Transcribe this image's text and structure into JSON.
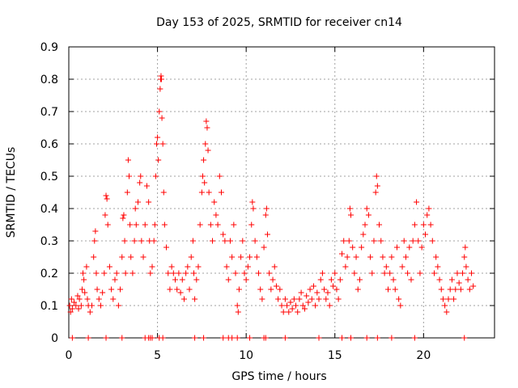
{
  "chart_data": {
    "type": "scatter",
    "title": "Day 153 of 2025, SRMTID for receiver cn14",
    "xlabel": "GPS time / hours",
    "ylabel": "SRMTID / TECUs",
    "xlim": [
      0,
      24
    ],
    "ylim": [
      0,
      0.9
    ],
    "x_ticks": [
      0,
      5,
      10,
      15,
      20
    ],
    "y_ticks": [
      0,
      0.1,
      0.2,
      0.3,
      0.4,
      0.5,
      0.6,
      0.7,
      0.8,
      0.9
    ],
    "grid": true,
    "marker": "plus",
    "color": "#ff0000",
    "series": [
      {
        "name": "SRMTID",
        "points": [
          [
            0.05,
            0.1
          ],
          [
            0.1,
            0.08
          ],
          [
            0.15,
            0.12
          ],
          [
            0.2,
            0.09
          ],
          [
            0.3,
            0.11
          ],
          [
            0.4,
            0.1
          ],
          [
            0.5,
            0.13
          ],
          [
            0.55,
            0.09
          ],
          [
            0.6,
            0.12
          ],
          [
            0.7,
            0.1
          ],
          [
            0.75,
            0.15
          ],
          [
            0.8,
            0.2
          ],
          [
            0.85,
            0.18
          ],
          [
            0.9,
            0.14
          ],
          [
            1.0,
            0.22
          ],
          [
            1.05,
            0.12
          ],
          [
            1.1,
            0.1
          ],
          [
            1.2,
            0.08
          ],
          [
            1.3,
            0.1
          ],
          [
            1.4,
            0.25
          ],
          [
            1.45,
            0.3
          ],
          [
            1.5,
            0.33
          ],
          [
            1.55,
            0.2
          ],
          [
            1.6,
            0.15
          ],
          [
            1.7,
            0.12
          ],
          [
            1.8,
            0.1
          ],
          [
            1.9,
            0.14
          ],
          [
            2.0,
            0.2
          ],
          [
            2.05,
            0.38
          ],
          [
            2.1,
            0.44
          ],
          [
            2.15,
            0.43
          ],
          [
            2.2,
            0.35
          ],
          [
            2.3,
            0.22
          ],
          [
            2.4,
            0.15
          ],
          [
            2.5,
            0.12
          ],
          [
            2.6,
            0.18
          ],
          [
            2.7,
            0.2
          ],
          [
            2.8,
            0.1
          ],
          [
            2.9,
            0.15
          ],
          [
            3.0,
            0.25
          ],
          [
            3.05,
            0.37
          ],
          [
            3.1,
            0.38
          ],
          [
            3.15,
            0.3
          ],
          [
            3.2,
            0.2
          ],
          [
            3.3,
            0.45
          ],
          [
            3.35,
            0.55
          ],
          [
            3.4,
            0.5
          ],
          [
            3.45,
            0.35
          ],
          [
            3.5,
            0.25
          ],
          [
            3.6,
            0.2
          ],
          [
            3.7,
            0.3
          ],
          [
            3.75,
            0.4
          ],
          [
            3.8,
            0.35
          ],
          [
            3.9,
            0.42
          ],
          [
            4.0,
            0.48
          ],
          [
            4.05,
            0.5
          ],
          [
            4.1,
            0.3
          ],
          [
            4.2,
            0.25
          ],
          [
            4.3,
            0.35
          ],
          [
            4.4,
            0.47
          ],
          [
            4.5,
            0.42
          ],
          [
            4.55,
            0.3
          ],
          [
            4.6,
            0.2
          ],
          [
            4.7,
            0.22
          ],
          [
            4.8,
            0.3
          ],
          [
            4.85,
            0.35
          ],
          [
            4.9,
            0.5
          ],
          [
            4.95,
            0.6
          ],
          [
            5.0,
            0.62
          ],
          [
            5.05,
            0.55
          ],
          [
            5.1,
            0.7
          ],
          [
            5.15,
            0.77
          ],
          [
            5.18,
            0.8
          ],
          [
            5.2,
            0.81
          ],
          [
            5.22,
            0.8
          ],
          [
            5.25,
            0.68
          ],
          [
            5.3,
            0.6
          ],
          [
            5.35,
            0.45
          ],
          [
            5.4,
            0.35
          ],
          [
            5.5,
            0.28
          ],
          [
            5.6,
            0.2
          ],
          [
            5.7,
            0.15
          ],
          [
            5.8,
            0.22
          ],
          [
            5.9,
            0.2
          ],
          [
            6.0,
            0.18
          ],
          [
            6.1,
            0.15
          ],
          [
            6.2,
            0.2
          ],
          [
            6.3,
            0.14
          ],
          [
            6.4,
            0.18
          ],
          [
            6.5,
            0.12
          ],
          [
            6.6,
            0.2
          ],
          [
            6.7,
            0.22
          ],
          [
            6.8,
            0.15
          ],
          [
            6.9,
            0.25
          ],
          [
            7.0,
            0.3
          ],
          [
            7.05,
            0.2
          ],
          [
            7.1,
            0.12
          ],
          [
            7.2,
            0.18
          ],
          [
            7.3,
            0.22
          ],
          [
            7.4,
            0.35
          ],
          [
            7.5,
            0.45
          ],
          [
            7.55,
            0.5
          ],
          [
            7.6,
            0.55
          ],
          [
            7.65,
            0.48
          ],
          [
            7.7,
            0.6
          ],
          [
            7.75,
            0.67
          ],
          [
            7.8,
            0.65
          ],
          [
            7.85,
            0.58
          ],
          [
            7.9,
            0.45
          ],
          [
            8.0,
            0.35
          ],
          [
            8.1,
            0.3
          ],
          [
            8.2,
            0.42
          ],
          [
            8.3,
            0.38
          ],
          [
            8.4,
            0.35
          ],
          [
            8.5,
            0.5
          ],
          [
            8.6,
            0.45
          ],
          [
            8.7,
            0.32
          ],
          [
            8.8,
            0.3
          ],
          [
            8.9,
            0.22
          ],
          [
            9.0,
            0.18
          ],
          [
            9.1,
            0.3
          ],
          [
            9.2,
            0.25
          ],
          [
            9.3,
            0.35
          ],
          [
            9.4,
            0.2
          ],
          [
            9.5,
            0.1
          ],
          [
            9.55,
            0.08
          ],
          [
            9.6,
            0.15
          ],
          [
            9.7,
            0.25
          ],
          [
            9.8,
            0.3
          ],
          [
            9.9,
            0.2
          ],
          [
            10.0,
            0.18
          ],
          [
            10.1,
            0.22
          ],
          [
            10.2,
            0.25
          ],
          [
            10.3,
            0.35
          ],
          [
            10.35,
            0.42
          ],
          [
            10.4,
            0.4
          ],
          [
            10.5,
            0.3
          ],
          [
            10.6,
            0.25
          ],
          [
            10.7,
            0.2
          ],
          [
            10.8,
            0.15
          ],
          [
            10.9,
            0.12
          ],
          [
            11.0,
            0.28
          ],
          [
            11.1,
            0.38
          ],
          [
            11.15,
            0.4
          ],
          [
            11.2,
            0.32
          ],
          [
            11.3,
            0.2
          ],
          [
            11.4,
            0.15
          ],
          [
            11.5,
            0.18
          ],
          [
            11.6,
            0.22
          ],
          [
            11.7,
            0.16
          ],
          [
            11.8,
            0.12
          ],
          [
            11.9,
            0.15
          ],
          [
            12.0,
            0.1
          ],
          [
            12.1,
            0.08
          ],
          [
            12.2,
            0.12
          ],
          [
            12.3,
            0.1
          ],
          [
            12.4,
            0.08
          ],
          [
            12.5,
            0.11
          ],
          [
            12.6,
            0.09
          ],
          [
            12.7,
            0.12
          ],
          [
            12.8,
            0.1
          ],
          [
            12.9,
            0.08
          ],
          [
            13.0,
            0.12
          ],
          [
            13.1,
            0.14
          ],
          [
            13.2,
            0.1
          ],
          [
            13.3,
            0.09
          ],
          [
            13.4,
            0.13
          ],
          [
            13.5,
            0.11
          ],
          [
            13.6,
            0.15
          ],
          [
            13.7,
            0.12
          ],
          [
            13.8,
            0.16
          ],
          [
            13.9,
            0.1
          ],
          [
            14.0,
            0.14
          ],
          [
            14.1,
            0.12
          ],
          [
            14.2,
            0.18
          ],
          [
            14.3,
            0.2
          ],
          [
            14.4,
            0.15
          ],
          [
            14.5,
            0.12
          ],
          [
            14.6,
            0.14
          ],
          [
            14.7,
            0.1
          ],
          [
            14.8,
            0.18
          ],
          [
            14.9,
            0.16
          ],
          [
            15.0,
            0.2
          ],
          [
            15.1,
            0.15
          ],
          [
            15.2,
            0.12
          ],
          [
            15.3,
            0.18
          ],
          [
            15.4,
            0.26
          ],
          [
            15.5,
            0.3
          ],
          [
            15.6,
            0.22
          ],
          [
            15.7,
            0.25
          ],
          [
            15.8,
            0.3
          ],
          [
            15.85,
            0.4
          ],
          [
            15.9,
            0.38
          ],
          [
            16.0,
            0.28
          ],
          [
            16.1,
            0.2
          ],
          [
            16.2,
            0.25
          ],
          [
            16.3,
            0.15
          ],
          [
            16.4,
            0.18
          ],
          [
            16.5,
            0.28
          ],
          [
            16.6,
            0.32
          ],
          [
            16.7,
            0.35
          ],
          [
            16.8,
            0.4
          ],
          [
            16.9,
            0.38
          ],
          [
            17.0,
            0.25
          ],
          [
            17.1,
            0.2
          ],
          [
            17.2,
            0.3
          ],
          [
            17.3,
            0.45
          ],
          [
            17.35,
            0.5
          ],
          [
            17.4,
            0.47
          ],
          [
            17.5,
            0.35
          ],
          [
            17.6,
            0.3
          ],
          [
            17.7,
            0.25
          ],
          [
            17.8,
            0.2
          ],
          [
            17.9,
            0.22
          ],
          [
            18.0,
            0.15
          ],
          [
            18.1,
            0.2
          ],
          [
            18.2,
            0.25
          ],
          [
            18.3,
            0.18
          ],
          [
            18.4,
            0.15
          ],
          [
            18.5,
            0.28
          ],
          [
            18.6,
            0.12
          ],
          [
            18.7,
            0.1
          ],
          [
            18.8,
            0.22
          ],
          [
            18.9,
            0.3
          ],
          [
            19.0,
            0.25
          ],
          [
            19.1,
            0.2
          ],
          [
            19.2,
            0.28
          ],
          [
            19.3,
            0.18
          ],
          [
            19.4,
            0.3
          ],
          [
            19.5,
            0.35
          ],
          [
            19.6,
            0.42
          ],
          [
            19.7,
            0.3
          ],
          [
            19.8,
            0.2
          ],
          [
            19.9,
            0.28
          ],
          [
            20.0,
            0.35
          ],
          [
            20.1,
            0.32
          ],
          [
            20.2,
            0.38
          ],
          [
            20.3,
            0.4
          ],
          [
            20.4,
            0.35
          ],
          [
            20.5,
            0.3
          ],
          [
            20.6,
            0.2
          ],
          [
            20.7,
            0.25
          ],
          [
            20.8,
            0.22
          ],
          [
            20.9,
            0.18
          ],
          [
            21.0,
            0.15
          ],
          [
            21.1,
            0.12
          ],
          [
            21.2,
            0.1
          ],
          [
            21.3,
            0.08
          ],
          [
            21.4,
            0.12
          ],
          [
            21.5,
            0.15
          ],
          [
            21.6,
            0.18
          ],
          [
            21.7,
            0.12
          ],
          [
            21.8,
            0.15
          ],
          [
            21.9,
            0.2
          ],
          [
            22.0,
            0.17
          ],
          [
            22.1,
            0.15
          ],
          [
            22.2,
            0.2
          ],
          [
            22.3,
            0.25
          ],
          [
            22.35,
            0.28
          ],
          [
            22.4,
            0.22
          ],
          [
            22.5,
            0.18
          ],
          [
            22.6,
            0.15
          ],
          [
            22.7,
            0.2
          ],
          [
            22.8,
            0.16
          ],
          [
            0.2,
            0
          ],
          [
            1.1,
            0
          ],
          [
            2.1,
            0
          ],
          [
            3.0,
            0
          ],
          [
            4.3,
            0
          ],
          [
            4.5,
            0
          ],
          [
            4.6,
            0
          ],
          [
            4.7,
            0
          ],
          [
            5.1,
            0
          ],
          [
            5.3,
            0
          ],
          [
            7.1,
            0
          ],
          [
            7.6,
            0
          ],
          [
            8.7,
            0
          ],
          [
            9.0,
            0
          ],
          [
            9.2,
            0
          ],
          [
            9.5,
            0
          ],
          [
            10.2,
            0
          ],
          [
            11.0,
            0
          ],
          [
            11.1,
            0
          ],
          [
            12.2,
            0
          ],
          [
            14.1,
            0
          ],
          [
            15.4,
            0
          ],
          [
            15.9,
            0
          ],
          [
            16.8,
            0
          ],
          [
            17.4,
            0
          ],
          [
            18.2,
            0
          ],
          [
            19.5,
            0
          ],
          [
            22.3,
            0
          ]
        ]
      }
    ]
  }
}
